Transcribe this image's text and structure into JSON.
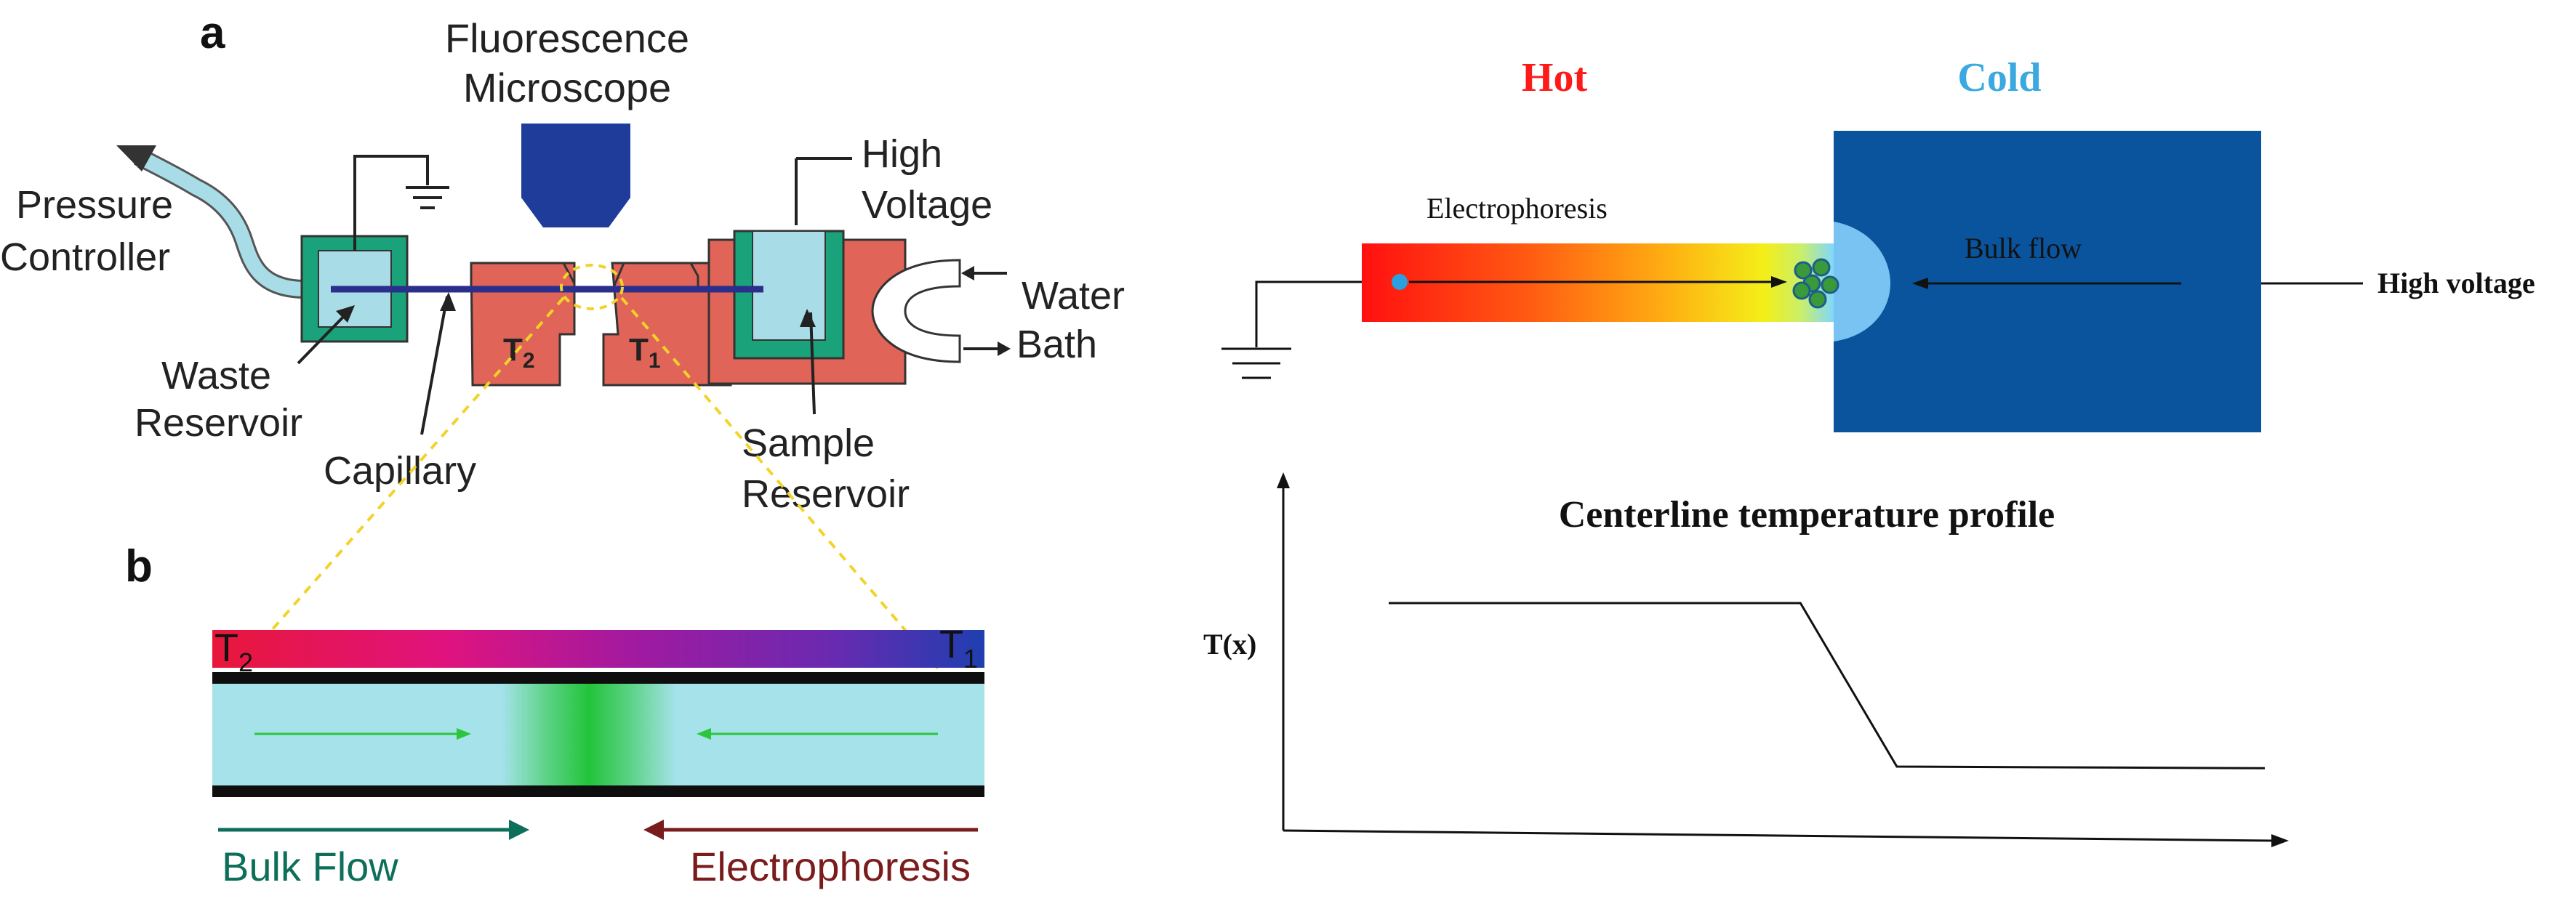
{
  "panel_a": {
    "label": "a",
    "microscope_label_line1": "Fluorescence",
    "microscope_label_line2": "Microscope",
    "pressure_line1": "Pressure",
    "pressure_line2": "Controller",
    "hv_line1": "High",
    "hv_line2": "Voltage",
    "water_line1": "Water",
    "water_line2": "Bath",
    "waste_line1": "Waste",
    "waste_line2": "Reservoir",
    "capillary": "Capillary",
    "sample_line1": "Sample",
    "sample_line2": "Reservoir",
    "t2_main": "T",
    "t2_sub": "2",
    "t1_main": "T",
    "t1_sub": "1",
    "colors": {
      "block": "#e06458",
      "reservoir": "#1aa37a",
      "liquid": "#a8dde8",
      "microscope": "#1f3c9a",
      "capillary": "#2b2f8c"
    }
  },
  "panel_b": {
    "label": "b",
    "t2_main": "T",
    "t2_sub": "2",
    "t1_main": "T",
    "t1_sub": "1",
    "bulk_flow": "Bulk Flow",
    "electrophoresis": "Electrophoresis",
    "colors": {
      "bulk_flow": "#0d6f5a",
      "electrophoresis": "#7a1c1c",
      "channel": "#a5e2ea",
      "band": "#2cc63c"
    }
  },
  "right_schematic": {
    "hot": "Hot",
    "cold": "Cold",
    "electrophoresis": "Electrophoresis",
    "bulk_flow": "Bulk flow",
    "high_voltage": "High voltage",
    "colors": {
      "hot": "#ff1a1a",
      "cold": "#39a9e0",
      "reservoir": "#0a539d"
    }
  },
  "chart_data": {
    "type": "line",
    "title": "Centerline temperature profile",
    "ylabel": "T(x)",
    "xlabel": "",
    "grid": false,
    "legend": "none",
    "series": [
      {
        "x": [
          0.0,
          0.47,
          0.58,
          1.0
        ],
        "values": [
          1.0,
          1.0,
          0.0,
          -0.01
        ]
      }
    ]
  }
}
